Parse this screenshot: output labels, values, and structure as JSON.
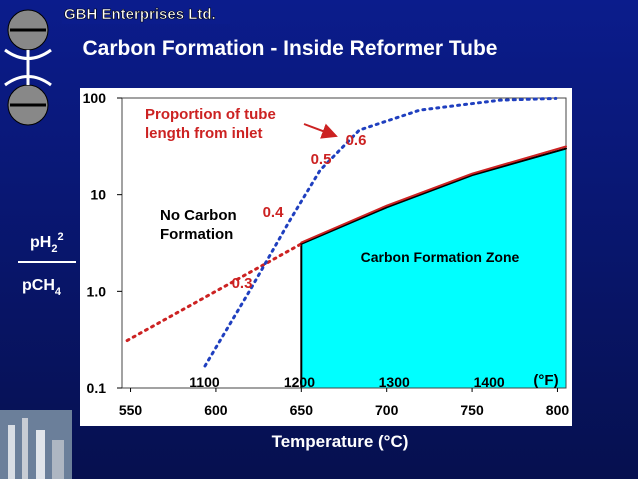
{
  "header": "GBH Enterprises Ltd.",
  "chart_data": {
    "type": "line",
    "title": "Carbon Formation - Inside Reformer Tube",
    "x_label": "Temperature (°C)",
    "x2_label": "(°F)",
    "y_label_numerator": {
      "base": "pH",
      "sub": "2",
      "sup": "2"
    },
    "y_label_denominator": {
      "base": "pCH",
      "sub": "4"
    },
    "xlim": [
      545,
      805
    ],
    "xticks": [
      550,
      600,
      650,
      700,
      750,
      800
    ],
    "x2ticks": [
      {
        "value": 593.3,
        "label": "1100"
      },
      {
        "value": 648.9,
        "label": "1200"
      },
      {
        "value": 704.4,
        "label": "1300"
      },
      {
        "value": 760,
        "label": "1400"
      }
    ],
    "y_scale": "log",
    "ylim": [
      0.1,
      100
    ],
    "yticks": [
      0.1,
      {
        "value": 1,
        "label": "1.0"
      },
      10,
      100
    ],
    "series": [
      {
        "color": "#cc2222",
        "dash": true,
        "x": [
          548,
          650
        ],
        "values": [
          0.31,
          3.1
        ]
      },
      {
        "color": "#000000",
        "fill": "#00ffff",
        "x": [
          650,
          700,
          750,
          805
        ],
        "values": [
          3.1,
          7.4,
          15.9,
          30
        ]
      },
      {
        "color": "#cc2222",
        "x": [
          650,
          700,
          750,
          805
        ],
        "values": [
          3.2,
          7.7,
          16.5,
          31.5
        ]
      },
      {
        "color": "#1f3fbf",
        "dash": true,
        "x": [
          593.6,
          620,
          643.4,
          661,
          684,
          719.5,
          766.3,
          799
        ],
        "values": [
          0.169,
          1.03,
          5.46,
          17.9,
          46.6,
          75,
          95,
          99
        ]
      }
    ],
    "point_labels": [
      0.3,
      0.4,
      0.5,
      0.6
    ],
    "point_label_color": "#cc2222",
    "annotation_proportion": "Proportion of tube length from inlet",
    "annotation_no_carbon": "No Carbon Formation",
    "annotation_zone": "Carbon Formation Zone"
  }
}
